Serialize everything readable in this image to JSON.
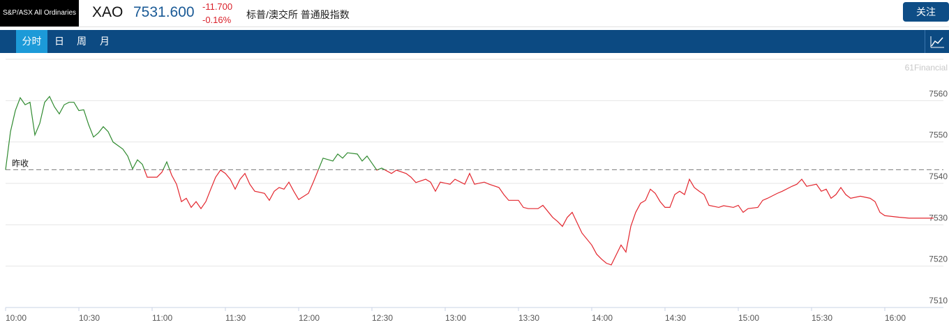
{
  "header": {
    "badge": "S&P/ASX All Ordinaries",
    "symbol": "XAO",
    "price": "7531.600",
    "change": "-11.700",
    "change_percent": "-0.16%",
    "name": "标普/澳交所 普通股指数",
    "button": "关注"
  },
  "tabs": [
    "分时",
    "日",
    "周",
    "月"
  ],
  "watermark": "61Financial",
  "chart_data": {
    "type": "line",
    "x": [
      "10:00",
      "10:02",
      "10:04",
      "10:06",
      "10:08",
      "10:10",
      "10:12",
      "10:14",
      "10:16",
      "10:18",
      "10:20",
      "10:22",
      "10:24",
      "10:26",
      "10:28",
      "10:30",
      "10:32",
      "10:34",
      "10:36",
      "10:38",
      "10:40",
      "10:42",
      "10:44",
      "10:48",
      "10:50",
      "10:52",
      "10:54",
      "10:56",
      "10:58",
      "11:02",
      "11:04",
      "11:06",
      "11:08",
      "11:10",
      "11:12",
      "11:14",
      "11:16",
      "11:18",
      "11:20",
      "11:22",
      "11:24",
      "11:26",
      "11:28",
      "11:30",
      "11:32",
      "11:34",
      "11:36",
      "11:38",
      "11:40",
      "11:42",
      "11:46",
      "11:48",
      "11:50",
      "11:52",
      "11:54",
      "11:56",
      "11:58",
      "12:00",
      "12:04",
      "12:06",
      "12:08",
      "12:10",
      "12:14",
      "12:16",
      "12:18",
      "12:20",
      "12:24",
      "12:26",
      "12:28",
      "12:30",
      "12:32",
      "12:34",
      "12:38",
      "12:40",
      "12:44",
      "12:46",
      "12:48",
      "12:52",
      "12:54",
      "12:56",
      "12:58",
      "13:02",
      "13:04",
      "13:08",
      "13:10",
      "13:12",
      "13:16",
      "13:18",
      "13:22",
      "13:24",
      "13:26",
      "13:30",
      "13:32",
      "13:34",
      "13:38",
      "13:40",
      "13:44",
      "13:46",
      "13:48",
      "13:50",
      "13:52",
      "13:54",
      "13:56",
      "14:00",
      "14:02",
      "14:04",
      "14:06",
      "14:08",
      "14:12",
      "14:14",
      "14:16",
      "14:18",
      "14:20",
      "14:22",
      "14:24",
      "14:26",
      "14:28",
      "14:30",
      "14:32",
      "14:34",
      "14:36",
      "14:38",
      "14:40",
      "14:42",
      "14:44",
      "14:46",
      "14:48",
      "14:52",
      "14:54",
      "14:58",
      "15:00",
      "15:02",
      "15:04",
      "15:08",
      "15:10",
      "15:12",
      "15:16",
      "15:18",
      "15:22",
      "15:24",
      "15:26",
      "15:28",
      "15:32",
      "15:34",
      "15:36",
      "15:38",
      "15:40",
      "15:42",
      "15:44",
      "15:46",
      "15:50",
      "15:54",
      "15:56",
      "15:58",
      "16:00",
      "16:06",
      "16:10",
      "16:20"
    ],
    "values": [
      7543.3,
      7552.5,
      7557.6,
      7560.7,
      7559,
      7559.6,
      7551.7,
      7554.5,
      7559.6,
      7561,
      7558.5,
      7556.8,
      7559,
      7559.6,
      7559.6,
      7557.6,
      7557.8,
      7554.2,
      7551.2,
      7552.2,
      7553.7,
      7552.5,
      7550,
      7548.3,
      7546.6,
      7543.5,
      7545.7,
      7544.6,
      7541.5,
      7541.5,
      7542.7,
      7545.2,
      7542,
      7539.8,
      7535.6,
      7536.4,
      7534.2,
      7535.6,
      7533.9,
      7535.6,
      7538.6,
      7541.5,
      7543.2,
      7542.4,
      7541,
      7538.6,
      7541,
      7542.4,
      7539.8,
      7538.1,
      7537.6,
      7535.9,
      7538.1,
      7539,
      7538.6,
      7540.3,
      7538.1,
      7536.1,
      7537.6,
      7540.3,
      7543.2,
      7546.1,
      7545.4,
      7547.1,
      7546.1,
      7547.4,
      7547.1,
      7545.4,
      7546.6,
      7544.9,
      7543.2,
      7543.7,
      7542.4,
      7543.2,
      7542.4,
      7541.5,
      7540.2,
      7541,
      7540.3,
      7538.1,
      7540.3,
      7539.8,
      7541,
      7539.8,
      7542.4,
      7539.8,
      7540.3,
      7539.8,
      7539,
      7537.3,
      7535.9,
      7535.9,
      7534.2,
      7533.9,
      7533.9,
      7534.7,
      7531.8,
      7530.8,
      7529.6,
      7531.8,
      7533,
      7530.5,
      7528,
      7525.1,
      7522.9,
      7521.7,
      7520.7,
      7520.3,
      7525.1,
      7523.4,
      7529.6,
      7533,
      7535.2,
      7535.9,
      7538.6,
      7537.6,
      7535.6,
      7534.2,
      7534.2,
      7537.3,
      7538.1,
      7537.3,
      7541,
      7539,
      7538.1,
      7537.3,
      7534.7,
      7534.2,
      7534.6,
      7534.2,
      7534.7,
      7533,
      7533.9,
      7534.2,
      7535.9,
      7536.4,
      7537.6,
      7538.1,
      7539.3,
      7539.8,
      7541,
      7539.3,
      7539.8,
      7538.1,
      7538.6,
      7536.4,
      7537.3,
      7539,
      7537.3,
      7536.4,
      7536.9,
      7536.4,
      7535.6,
      7533,
      7532.2,
      7531.8,
      7531.6,
      7531.6
    ],
    "color_above": "#2f8a2f",
    "color_below": "#e3262e",
    "reference": {
      "value": 7543.3,
      "label": "昨收"
    },
    "xlim": [
      "10:00",
      "16:24"
    ],
    "xticks": [
      "10:00",
      "10:30",
      "11:00",
      "11:30",
      "12:00",
      "12:30",
      "13:00",
      "13:30",
      "14:00",
      "14:30",
      "15:00",
      "15:30",
      "16:00"
    ],
    "ylim": [
      7510,
      7570
    ],
    "yticks": [
      7510,
      7520,
      7530,
      7540,
      7550,
      7560
    ],
    "grid": true
  }
}
